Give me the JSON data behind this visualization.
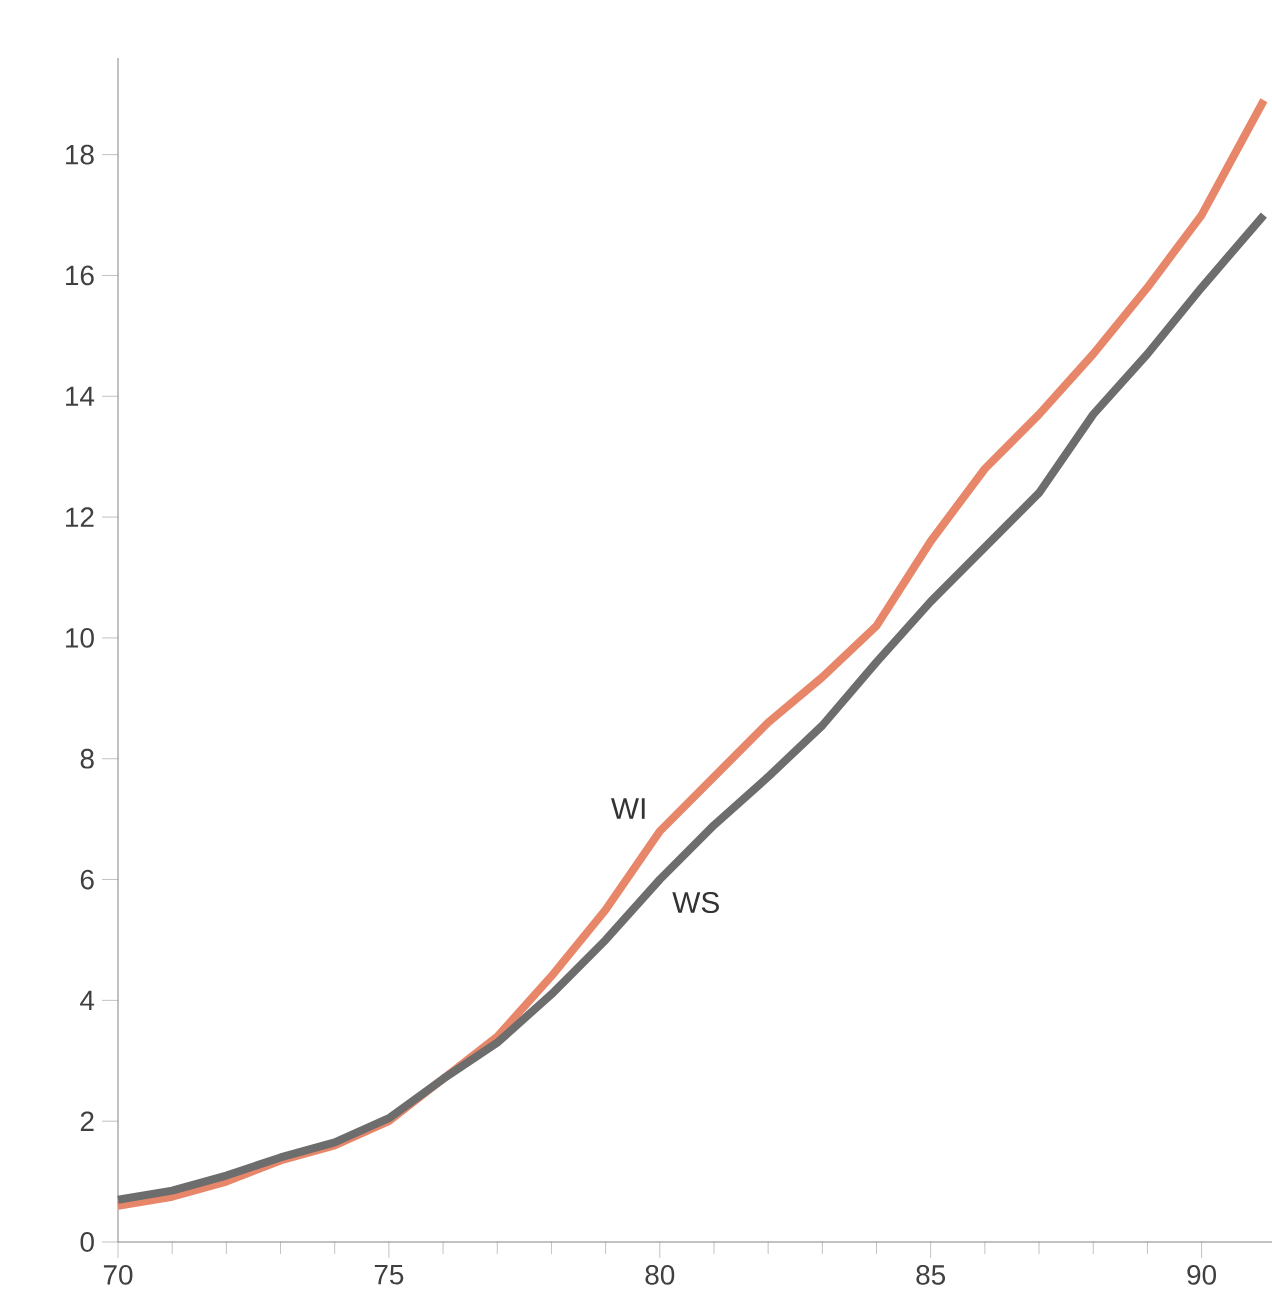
{
  "chart_data": {
    "type": "line",
    "x": [
      70,
      71,
      72,
      73,
      74,
      75,
      76,
      77,
      78,
      79,
      80,
      81,
      82,
      83,
      84,
      85,
      86,
      87,
      88,
      89,
      90,
      91.15
    ],
    "series": [
      {
        "name": "WI",
        "color": "#e8866a",
        "values": [
          0.6,
          0.75,
          1.0,
          1.35,
          1.6,
          2.0,
          2.7,
          3.4,
          4.4,
          5.5,
          6.8,
          7.7,
          8.6,
          9.35,
          10.2,
          11.6,
          12.8,
          13.7,
          14.7,
          15.8,
          17.0,
          18.9
        ]
      },
      {
        "name": "WS",
        "color": "#6d6d6d",
        "values": [
          0.7,
          0.85,
          1.1,
          1.4,
          1.65,
          2.05,
          2.7,
          3.3,
          4.1,
          5.0,
          6.0,
          6.9,
          7.7,
          8.55,
          9.6,
          10.6,
          11.5,
          12.4,
          13.7,
          14.7,
          15.8,
          17.0
        ]
      }
    ],
    "xlim": [
      70,
      91.3
    ],
    "xticks": [
      70,
      75,
      80,
      85,
      90
    ],
    "ylim": [
      0,
      19.6
    ],
    "yticks": [
      0,
      2,
      4,
      6,
      8,
      10,
      12,
      14,
      16,
      18
    ],
    "grid": false,
    "marker": "none",
    "line_style": "solid"
  }
}
